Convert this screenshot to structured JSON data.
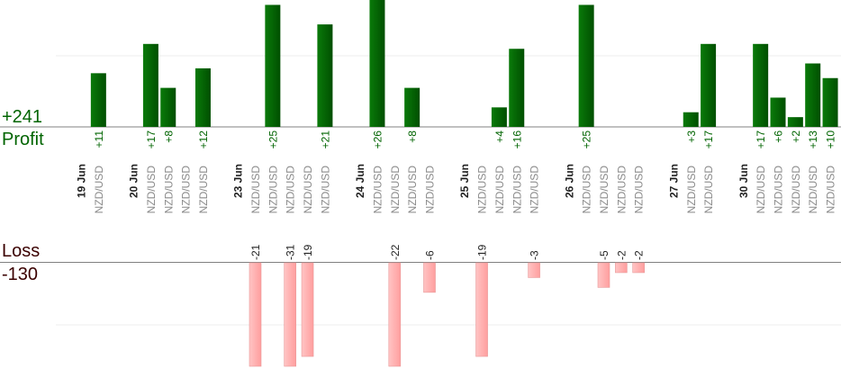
{
  "chart_data": {
    "type": "bar",
    "series": [
      {
        "name": "Profit",
        "sum": "+241",
        "color": "#006400"
      },
      {
        "name": "Loss",
        "sum": "-130",
        "color": "#ffb3b3"
      }
    ],
    "profit_ylim": [
      0,
      26
    ],
    "loss_ylim": [
      -21,
      0
    ],
    "x": [
      {
        "label": "19 Jun",
        "type": "date"
      },
      {
        "label": "NZD/USD",
        "type": "trade",
        "profit": 11,
        "profit_label": "+11"
      },
      {
        "type": "gap"
      },
      {
        "label": "20 Jun",
        "type": "date"
      },
      {
        "label": "NZD/USD",
        "type": "trade",
        "profit": 17,
        "profit_label": "+17"
      },
      {
        "label": "NZD/USD",
        "type": "trade",
        "profit": 8,
        "profit_label": "+8"
      },
      {
        "label": "NZD/USD",
        "type": "trade"
      },
      {
        "label": "NZD/USD",
        "type": "trade",
        "profit": 12,
        "profit_label": "+12"
      },
      {
        "type": "gap"
      },
      {
        "label": "23 Jun",
        "type": "date"
      },
      {
        "label": "NZD/USD",
        "type": "trade",
        "loss": -21,
        "loss_label": "-21"
      },
      {
        "label": "NZD/USD",
        "type": "trade",
        "profit": 25,
        "profit_label": "+25"
      },
      {
        "label": "NZD/USD",
        "type": "trade",
        "loss": -31,
        "loss_label": "-31"
      },
      {
        "label": "NZD/USD",
        "type": "trade",
        "loss": -19,
        "loss_label": "-19"
      },
      {
        "label": "NZD/USD",
        "type": "trade",
        "profit": 21,
        "profit_label": "+21"
      },
      {
        "type": "gap"
      },
      {
        "label": "24 Jun",
        "type": "date"
      },
      {
        "label": "NZD/USD",
        "type": "trade",
        "profit": 26,
        "profit_label": "+26"
      },
      {
        "label": "NZD/USD",
        "type": "trade",
        "loss": -22,
        "loss_label": "-22"
      },
      {
        "label": "NZD/USD",
        "type": "trade",
        "profit": 8,
        "profit_label": "+8"
      },
      {
        "label": "NZD/USD",
        "type": "trade",
        "loss": -6,
        "loss_label": "-6"
      },
      {
        "type": "gap"
      },
      {
        "label": "25 Jun",
        "type": "date"
      },
      {
        "label": "NZD/USD",
        "type": "trade",
        "loss": -19,
        "loss_label": "-19"
      },
      {
        "label": "NZD/USD",
        "type": "trade",
        "profit": 4,
        "profit_label": "+4"
      },
      {
        "label": "NZD/USD",
        "type": "trade",
        "profit": 16,
        "profit_label": "+16"
      },
      {
        "label": "NZD/USD",
        "type": "trade",
        "loss": -3,
        "loss_label": "-3"
      },
      {
        "type": "gap"
      },
      {
        "label": "26 Jun",
        "type": "date"
      },
      {
        "label": "NZD/USD",
        "type": "trade",
        "profit": 25,
        "profit_label": "+25"
      },
      {
        "label": "NZD/USD",
        "type": "trade",
        "loss": -5,
        "loss_label": "-5"
      },
      {
        "label": "NZD/USD",
        "type": "trade",
        "loss": -2,
        "loss_label": "-2"
      },
      {
        "label": "NZD/USD",
        "type": "trade",
        "loss": -2,
        "loss_label": "-2"
      },
      {
        "type": "gap"
      },
      {
        "label": "27 Jun",
        "type": "date"
      },
      {
        "label": "NZD/USD",
        "type": "trade",
        "profit": 3,
        "profit_label": "+3"
      },
      {
        "label": "NZD/USD",
        "type": "trade",
        "profit": 17,
        "profit_label": "+17"
      },
      {
        "type": "gap"
      },
      {
        "label": "30 Jun",
        "type": "date"
      },
      {
        "label": "NZD/USD",
        "type": "trade",
        "profit": 17,
        "profit_label": "+17"
      },
      {
        "label": "NZD/USD",
        "type": "trade",
        "profit": 6,
        "profit_label": "+6"
      },
      {
        "label": "NZD/USD",
        "type": "trade",
        "profit": 2,
        "profit_label": "+2"
      },
      {
        "label": "NZD/USD",
        "type": "trade",
        "profit": 13,
        "profit_label": "+13"
      },
      {
        "label": "NZD/USD",
        "type": "trade",
        "profit": 10,
        "profit_label": "+10"
      }
    ]
  }
}
